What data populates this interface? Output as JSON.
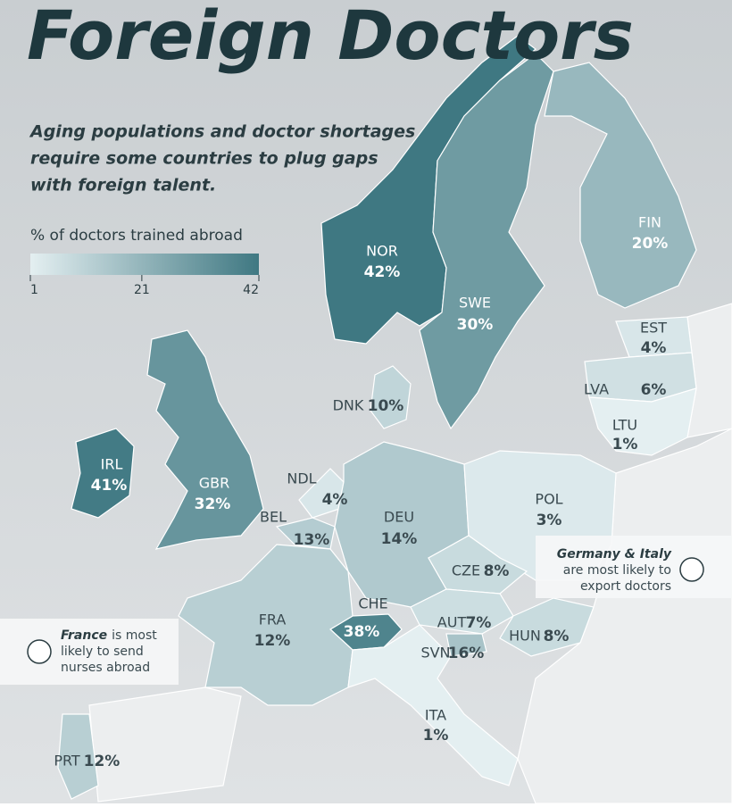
{
  "header": {
    "title": "Foreign Doctors",
    "subtitle_lines": [
      "Aging populations and doctor shortages",
      "require some countries to plug gaps",
      "with foreign talent."
    ]
  },
  "legend": {
    "title": "% of doctors trained abroad",
    "range": [
      1,
      42
    ],
    "ticks": [
      1,
      21,
      42
    ],
    "colors": [
      "#e4eff1",
      "#3f7882"
    ]
  },
  "countries": [
    {
      "code": "NOR",
      "value": 42,
      "label": "42%"
    },
    {
      "code": "SWE",
      "value": 30,
      "label": "30%"
    },
    {
      "code": "FIN",
      "value": 20,
      "label": "20%"
    },
    {
      "code": "EST",
      "value": 4,
      "label": "4%"
    },
    {
      "code": "LVA",
      "value": 6,
      "label": "6%"
    },
    {
      "code": "LTU",
      "value": 1,
      "label": "1%"
    },
    {
      "code": "DNK",
      "value": 10,
      "label": "10%"
    },
    {
      "code": "IRL",
      "value": 41,
      "label": "41%"
    },
    {
      "code": "GBR",
      "value": 32,
      "label": "32%"
    },
    {
      "code": "NDL",
      "value": 4,
      "label": "4%"
    },
    {
      "code": "BEL",
      "value": 13,
      "label": "13%"
    },
    {
      "code": "DEU",
      "value": 14,
      "label": "14%"
    },
    {
      "code": "POL",
      "value": 3,
      "label": "3%"
    },
    {
      "code": "CZE",
      "value": 8,
      "label": "8%"
    },
    {
      "code": "AUT",
      "value": 7,
      "label": "7%"
    },
    {
      "code": "HUN",
      "value": 8,
      "label": "8%"
    },
    {
      "code": "CHE",
      "value": 38,
      "label": "38%"
    },
    {
      "code": "FRA",
      "value": 12,
      "label": "12%"
    },
    {
      "code": "SVN",
      "value": 16,
      "label": "16%"
    },
    {
      "code": "ITA",
      "value": 1,
      "label": "1%"
    },
    {
      "code": "PRT",
      "value": 12,
      "label": "12%"
    }
  ],
  "callouts": [
    {
      "bold": "Germany & Italy",
      "lines": [
        "are most likely to",
        "export doctors"
      ]
    },
    {
      "bold": "France",
      "lines": [
        "is most",
        "likely to send",
        "nurses abroad"
      ]
    }
  ]
}
